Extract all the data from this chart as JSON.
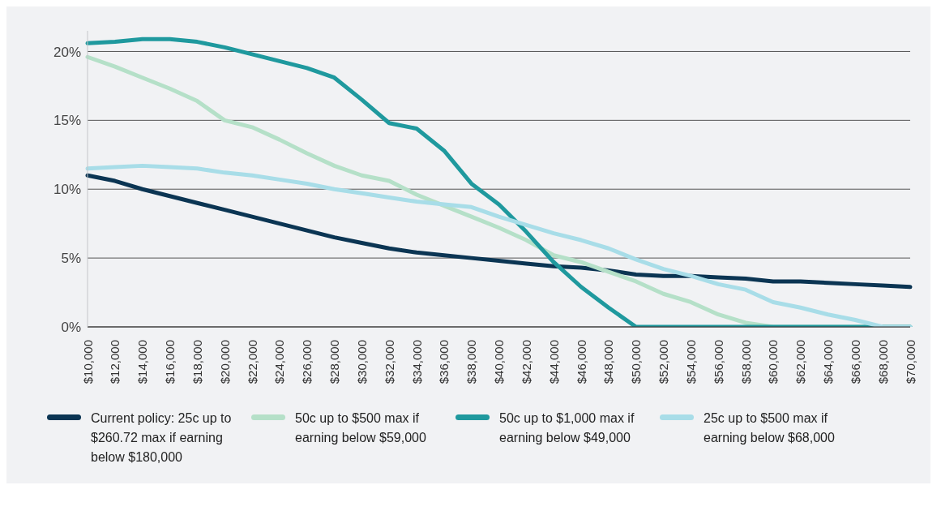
{
  "chart_data": {
    "type": "line",
    "categories": [
      "$10,000",
      "$12,000",
      "$14,000",
      "$16,000",
      "$18,000",
      "$20,000",
      "$22,000",
      "$24,000",
      "$26,000",
      "$28,000",
      "$30,000",
      "$32,000",
      "$34,000",
      "$36,000",
      "$38,000",
      "$40,000",
      "$42,000",
      "$44,000",
      "$46,000",
      "$48,000",
      "$50,000",
      "$52,000",
      "$54,000",
      "$56,000",
      "$58,000",
      "$60,000",
      "$62,000",
      "$64,000",
      "$66,000",
      "$68,000",
      "$70,000"
    ],
    "series": [
      {
        "name": "Current policy: 25c up to $260.72 max if earning below $180,000",
        "color": "#0b3553",
        "values": [
          11.0,
          10.6,
          10.0,
          9.5,
          9.0,
          8.5,
          8.0,
          7.5,
          7.0,
          6.5,
          6.1,
          5.7,
          5.4,
          5.2,
          5.0,
          4.8,
          4.6,
          4.4,
          4.3,
          4.1,
          3.8,
          3.7,
          3.7,
          3.6,
          3.5,
          3.3,
          3.3,
          3.2,
          3.1,
          3.0,
          2.9
        ]
      },
      {
        "name": "50c up to $500 max if earning below $59,000",
        "color": "#b5e0c8",
        "values": [
          19.6,
          18.9,
          18.1,
          17.3,
          16.4,
          15.0,
          14.5,
          13.6,
          12.6,
          11.7,
          11.0,
          10.6,
          9.6,
          8.8,
          8.0,
          7.2,
          6.3,
          5.2,
          4.7,
          4.0,
          3.3,
          2.4,
          1.8,
          0.9,
          0.3,
          0,
          0,
          0,
          0,
          0,
          0
        ]
      },
      {
        "name": "50c up to $1,000 max if earning below $49,000",
        "color": "#1f999e",
        "values": [
          20.6,
          20.7,
          20.9,
          20.9,
          20.7,
          20.3,
          19.8,
          19.3,
          18.8,
          18.1,
          16.5,
          14.8,
          14.4,
          12.8,
          10.4,
          8.9,
          6.9,
          4.7,
          2.9,
          1.4,
          0,
          0,
          0,
          0,
          0,
          0,
          0,
          0,
          0,
          0,
          0
        ]
      },
      {
        "name": "25c up to $500 max if earning below $68,000",
        "color": "#a8dde8",
        "values": [
          11.5,
          11.6,
          11.7,
          11.6,
          11.5,
          11.2,
          11.0,
          10.7,
          10.4,
          10.0,
          9.7,
          9.4,
          9.1,
          8.9,
          8.7,
          8.0,
          7.4,
          6.8,
          6.3,
          5.7,
          4.9,
          4.2,
          3.7,
          3.1,
          2.7,
          1.8,
          1.4,
          0.9,
          0.5,
          0,
          0
        ]
      }
    ],
    "ylim": [
      0,
      21.5
    ],
    "yticks": [
      {
        "value": 0,
        "label": "0%"
      },
      {
        "value": 5,
        "label": "5%"
      },
      {
        "value": 10,
        "label": "10%"
      },
      {
        "value": 15,
        "label": "15%"
      },
      {
        "value": 20,
        "label": "20%"
      }
    ],
    "grid": "y",
    "legend": "bottom",
    "marker": "none",
    "line_style": "solid"
  }
}
